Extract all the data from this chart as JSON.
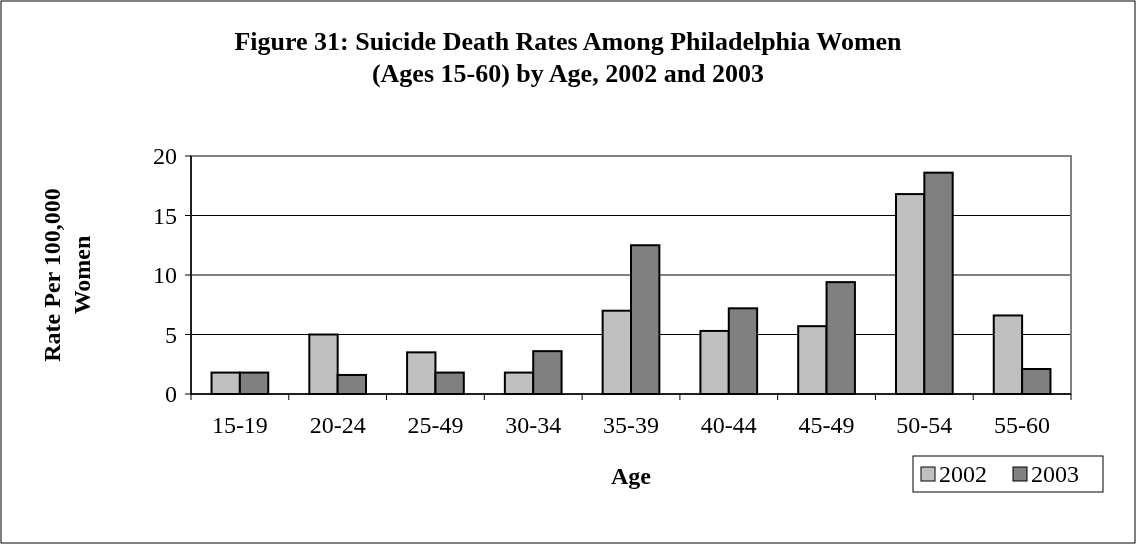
{
  "chart_data": {
    "type": "bar",
    "title": "Figure 31: Suicide Death Rates Among Philadelphia Women (Ages 15-60) by Age, 2002 and 2003",
    "xlabel": "Age",
    "ylabel": "Rate Per 100,000 Women",
    "categories": [
      "15-19",
      "20-24",
      "25-49",
      "30-34",
      "35-39",
      "40-44",
      "45-49",
      "50-54",
      "55-60"
    ],
    "series": [
      {
        "name": "2002",
        "color": "#c0c0c0",
        "values": [
          1.8,
          5.0,
          3.5,
          1.8,
          7.0,
          5.3,
          5.7,
          16.8,
          6.6
        ]
      },
      {
        "name": "2003",
        "color": "#808080",
        "values": [
          1.8,
          1.6,
          1.8,
          3.6,
          12.5,
          7.2,
          9.4,
          18.6,
          2.1
        ]
      }
    ],
    "ylim": [
      0,
      20
    ],
    "yticks": [
      0,
      5,
      10,
      15,
      20
    ],
    "grid": "y",
    "legend": "bottom right"
  }
}
